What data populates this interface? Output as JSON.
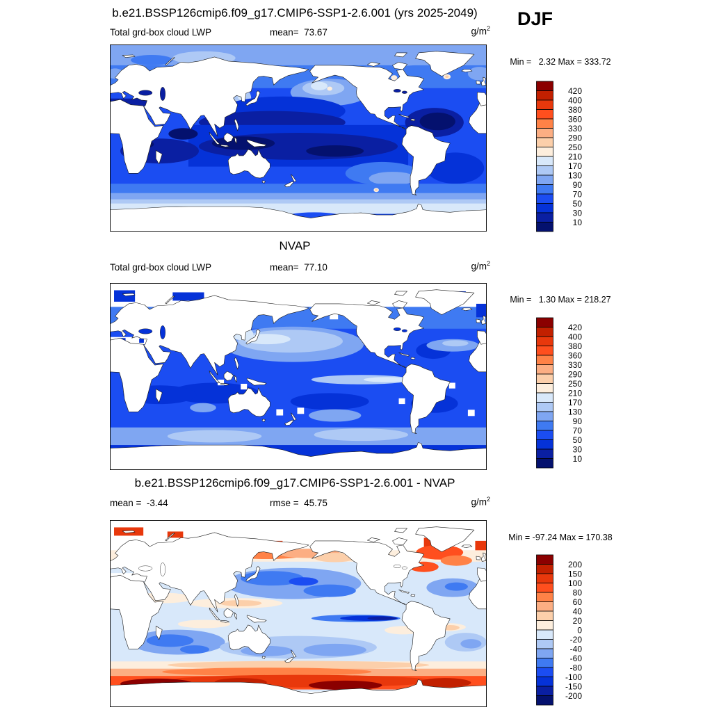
{
  "season": "DJF",
  "chart_data": {
    "type": "heatmap",
    "projection": "global lat-lon map, Pacific-centered (0E-360E, 90N-90S)",
    "season": "DJF",
    "variable": "Total grd-box cloud LWP",
    "units": "g/m^2",
    "contour_levels_lwp": [
      10,
      30,
      50,
      70,
      90,
      130,
      170,
      210,
      250,
      290,
      330,
      360,
      380,
      400,
      420
    ],
    "contour_levels_diff": [
      -200,
      -150,
      -100,
      -80,
      -60,
      -40,
      -20,
      0,
      20,
      40,
      60,
      80,
      100,
      150,
      200
    ],
    "palette_top_to_bottom": [
      "#8b0000",
      "#c22000",
      "#e8380c",
      "#ff4f1e",
      "#ff8247",
      "#fcae83",
      "#fccfaa",
      "#fdeedd",
      "#d8e8fa",
      "#aec9f5",
      "#7fa6f2",
      "#3f7af2",
      "#1b4df2",
      "#0532d8",
      "#0a1fa2",
      "#04116e"
    ],
    "panels": [
      {
        "name": "model",
        "title": "b.e21.BSSP126cmip6.f09_g17.CMIP6-SSP1-2.6.001 (yrs 2025-2049)",
        "mean": 73.67,
        "min": 2.32,
        "max": 333.72
      },
      {
        "name": "obs",
        "title": "NVAP",
        "mean": 77.1,
        "min": 1.3,
        "max": 218.27
      },
      {
        "name": "difference",
        "title": "b.e21.BSSP126cmip6.f09_g17.CMIP6-SSP1-2.6.001 - NVAP",
        "mean": -3.44,
        "rmse": 45.75,
        "min": -97.24,
        "max": 170.38
      }
    ]
  },
  "panels": [
    {
      "title": "b.e21.BSSP126cmip6.f09_g17.CMIP6-SSP1-2.6.001 (yrs 2025-2049)",
      "label_left": "Total grd-box cloud LWP",
      "stat_center": "mean=  73.67",
      "units": "g/m",
      "units_exp": "2",
      "minmax": "Min =   2.32 Max = 333.72",
      "levels": [
        420,
        400,
        380,
        360,
        330,
        290,
        250,
        210,
        170,
        130,
        90,
        70,
        50,
        30,
        10
      ],
      "lake_color": "#0a1fa2",
      "shading": [
        [
          0,
          0,
          0,
          720,
          360,
          3
        ],
        [
          0,
          0,
          0,
          720,
          84,
          4
        ],
        [
          0,
          0,
          0,
          720,
          40,
          5
        ],
        [
          1,
          180,
          26,
          60,
          13,
          6
        ],
        [
          1,
          560,
          30,
          50,
          11,
          5
        ],
        [
          1,
          80,
          30,
          40,
          10,
          4
        ],
        [
          1,
          10,
          56,
          16,
          10,
          5
        ],
        [
          1,
          706,
          56,
          22,
          13,
          5
        ],
        [
          1,
          420,
          92,
          75,
          26,
          5
        ],
        [
          1,
          408,
          84,
          40,
          14,
          6
        ],
        [
          1,
          400,
          80,
          16,
          8,
          7
        ],
        [
          1,
          420,
          85,
          5,
          4,
          8
        ],
        [
          1,
          250,
          104,
          20,
          22,
          6
        ],
        [
          1,
          252,
          99,
          8,
          8,
          7
        ],
        [
          1,
          330,
          128,
          120,
          28,
          2
        ],
        [
          1,
          310,
          150,
          140,
          22,
          1
        ],
        [
          0,
          150,
          155,
          420,
          80,
          2
        ],
        [
          1,
          360,
          196,
          190,
          26,
          1
        ],
        [
          1,
          255,
          190,
          60,
          13,
          0
        ],
        [
          1,
          430,
          205,
          55,
          11,
          0
        ],
        [
          1,
          95,
          205,
          75,
          24,
          1
        ],
        [
          1,
          140,
          172,
          28,
          11,
          0
        ],
        [
          1,
          60,
          192,
          24,
          9,
          0
        ],
        [
          0,
          0,
          104,
          74,
          14,
          1
        ],
        [
          1,
          620,
          150,
          56,
          28,
          1
        ],
        [
          1,
          626,
          148,
          34,
          17,
          0
        ],
        [
          1,
          660,
          238,
          55,
          30,
          2
        ],
        [
          1,
          520,
          248,
          70,
          22,
          4
        ],
        [
          1,
          540,
          258,
          45,
          13,
          5
        ],
        [
          0,
          0,
          268,
          720,
          30,
          4
        ],
        [
          0,
          0,
          286,
          720,
          32,
          5
        ],
        [
          0,
          0,
          298,
          720,
          26,
          6
        ],
        [
          0,
          0,
          306,
          720,
          20,
          7
        ],
        [
          1,
          360,
          318,
          200,
          9,
          7
        ],
        [
          0,
          0,
          328,
          720,
          32,
          4
        ],
        [
          1,
          390,
          334,
          60,
          11,
          3
        ],
        [
          1,
          543,
          64,
          6,
          5,
          8
        ],
        [
          1,
          219,
          132,
          4,
          3,
          8
        ],
        [
          1,
          644,
          62,
          7,
          5,
          8
        ],
        [
          1,
          644,
          62,
          3.5,
          2.5,
          9
        ],
        [
          1,
          509,
          280,
          5,
          4,
          8
        ],
        [
          1,
          509,
          280,
          2.5,
          2,
          9
        ]
      ]
    },
    {
      "title": "NVAP",
      "label_left": "Total grd-box cloud LWP",
      "stat_center": "mean=  77.10",
      "units": "g/m",
      "units_exp": "2",
      "minmax": "Min =   1.30 Max = 218.27",
      "levels": [
        420,
        400,
        380,
        360,
        330,
        290,
        250,
        210,
        170,
        130,
        90,
        70,
        50,
        30,
        10
      ],
      "lake_color": "#0532d8",
      "shading": [
        [
          0,
          0,
          0,
          720,
          360,
          3
        ],
        [
          0,
          0,
          46,
          720,
          42,
          4
        ],
        [
          0,
          0,
          0,
          720,
          46,
          "#ffffff"
        ],
        [
          0,
          8,
          14,
          40,
          22,
          2
        ],
        [
          0,
          120,
          18,
          60,
          16,
          2
        ],
        [
          0,
          636,
          16,
          44,
          20,
          2
        ],
        [
          0,
          700,
          40,
          20,
          26,
          2
        ],
        [
          1,
          350,
          118,
          135,
          34,
          5
        ],
        [
          1,
          345,
          112,
          100,
          22,
          6
        ],
        [
          1,
          300,
          108,
          45,
          10,
          7
        ],
        [
          1,
          252,
          98,
          22,
          12,
          7
        ],
        [
          1,
          200,
          212,
          85,
          20,
          2
        ],
        [
          1,
          420,
          228,
          75,
          16,
          2
        ],
        [
          1,
          95,
          215,
          70,
          18,
          2
        ],
        [
          1,
          620,
          232,
          45,
          18,
          2
        ],
        [
          1,
          618,
          130,
          33,
          16,
          2
        ],
        [
          1,
          655,
          120,
          50,
          12,
          5
        ],
        [
          1,
          660,
          116,
          25,
          6,
          6
        ],
        [
          1,
          480,
          186,
          95,
          9,
          6
        ],
        [
          1,
          530,
          186,
          45,
          5,
          7
        ],
        [
          1,
          178,
          240,
          25,
          9,
          5
        ],
        [
          1,
          430,
          255,
          50,
          12,
          5
        ],
        [
          0,
          0,
          278,
          720,
          34,
          5
        ],
        [
          1,
          200,
          295,
          90,
          12,
          6
        ],
        [
          1,
          480,
          292,
          90,
          12,
          6
        ],
        [
          0,
          0,
          312,
          720,
          26,
          2
        ],
        [
          0,
          0,
          104,
          74,
          14,
          "#ffffff"
        ],
        [
          0,
          18,
          106,
          12,
          9,
          2
        ],
        [
          0,
          56,
          107,
          9,
          8,
          2
        ],
        [
          0,
          206,
          186,
          12,
          11,
          "#ffffff"
        ],
        [
          0,
          250,
          194,
          12,
          11,
          "#ffffff"
        ],
        [
          0,
          318,
          243,
          13,
          12,
          "#ffffff"
        ],
        [
          0,
          358,
          240,
          13,
          12,
          "#ffffff"
        ],
        [
          0,
          552,
          222,
          12,
          11,
          "#ffffff"
        ],
        [
          0,
          684,
          244,
          13,
          12,
          "#ffffff"
        ],
        [
          0,
          176,
          322,
          64,
          14,
          "#ffffff"
        ],
        [
          0,
          276,
          326,
          44,
          10,
          "#ffffff"
        ],
        [
          0,
          420,
          56,
          16,
          14,
          "#ffffff"
        ],
        [
          0,
          648,
          192,
          12,
          11,
          "#ffffff"
        ]
      ]
    },
    {
      "title": "b.e21.BSSP126cmip6.f09_g17.CMIP6-SSP1-2.6.001 - NVAP",
      "label_left": "mean =  -3.44",
      "stat_center": "rmse =  45.75",
      "units": "g/m",
      "units_exp": "2",
      "minmax": "Min = -97.24 Max = 170.38",
      "levels": [
        200,
        150,
        100,
        80,
        60,
        40,
        20,
        0,
        -20,
        -40,
        -60,
        -80,
        -100,
        -150,
        -200
      ],
      "lake_color": "#ffffff",
      "shading": [
        [
          0,
          0,
          0,
          720,
          360,
          7
        ],
        [
          0,
          0,
          0,
          720,
          58,
          "#ffffff"
        ],
        [
          0,
          8,
          14,
          56,
          16,
          13
        ],
        [
          0,
          110,
          22,
          30,
          12,
          13
        ],
        [
          0,
          240,
          40,
          90,
          18,
          13
        ],
        [
          0,
          600,
          34,
          42,
          24,
          13
        ],
        [
          0,
          698,
          40,
          22,
          30,
          13
        ],
        [
          0,
          0,
          58,
          720,
          22,
          8
        ],
        [
          1,
          300,
          64,
          85,
          11,
          11
        ],
        [
          1,
          380,
          64,
          60,
          9,
          10
        ],
        [
          1,
          230,
          62,
          28,
          14,
          12
        ],
        [
          0,
          212,
          48,
          20,
          42,
          13
        ],
        [
          0,
          250,
          102,
          12,
          12,
          13
        ],
        [
          1,
          430,
          72,
          40,
          9,
          9
        ],
        [
          1,
          630,
          62,
          45,
          14,
          12
        ],
        [
          1,
          662,
          78,
          30,
          10,
          11
        ],
        [
          1,
          600,
          90,
          28,
          10,
          12
        ],
        [
          1,
          350,
          122,
          130,
          30,
          5
        ],
        [
          1,
          310,
          112,
          60,
          14,
          4
        ],
        [
          1,
          420,
          136,
          50,
          12,
          4
        ],
        [
          1,
          370,
          118,
          28,
          8,
          3
        ],
        [
          1,
          655,
          130,
          50,
          18,
          5
        ],
        [
          1,
          662,
          128,
          22,
          8,
          4
        ],
        [
          1,
          240,
          160,
          90,
          10,
          8
        ],
        [
          1,
          250,
          160,
          40,
          6,
          9
        ],
        [
          1,
          100,
          150,
          60,
          10,
          8
        ],
        [
          1,
          180,
          200,
          50,
          8,
          8
        ],
        [
          1,
          560,
          212,
          35,
          8,
          8
        ],
        [
          1,
          640,
          206,
          40,
          8,
          8
        ],
        [
          1,
          650,
          207,
          18,
          5,
          9
        ],
        [
          1,
          470,
          189,
          85,
          7,
          4
        ],
        [
          1,
          495,
          189,
          55,
          5,
          2
        ],
        [
          1,
          520,
          189,
          28,
          3.5,
          1
        ],
        [
          1,
          130,
          235,
          90,
          24,
          5
        ],
        [
          1,
          115,
          232,
          45,
          12,
          4
        ],
        [
          1,
          162,
          249,
          28,
          8,
          4
        ],
        [
          1,
          360,
          245,
          150,
          22,
          6
        ],
        [
          1,
          430,
          250,
          60,
          12,
          5
        ],
        [
          1,
          300,
          252,
          50,
          10,
          5
        ],
        [
          1,
          680,
          235,
          40,
          18,
          6
        ],
        [
          1,
          690,
          238,
          20,
          9,
          5
        ],
        [
          0,
          0,
          272,
          720,
          16,
          8
        ],
        [
          1,
          360,
          279,
          250,
          8,
          9
        ],
        [
          0,
          0,
          286,
          720,
          16,
          10
        ],
        [
          1,
          300,
          292,
          200,
          8,
          11
        ],
        [
          0,
          0,
          300,
          720,
          26,
          12
        ],
        [
          1,
          360,
          310,
          260,
          12,
          13
        ],
        [
          1,
          90,
          315,
          70,
          10,
          15
        ],
        [
          1,
          450,
          318,
          70,
          9,
          15
        ],
        [
          1,
          250,
          312,
          50,
          8,
          14
        ],
        [
          1,
          640,
          313,
          50,
          9,
          14
        ],
        [
          0,
          0,
          330,
          720,
          30,
          "#ffffff"
        ],
        [
          0,
          56,
          327,
          36,
          9,
          13
        ],
        [
          1,
          420,
          337,
          20,
          6,
          9
        ],
        [
          0,
          0,
          102,
          74,
          16,
          "#ffffff"
        ]
      ]
    }
  ]
}
